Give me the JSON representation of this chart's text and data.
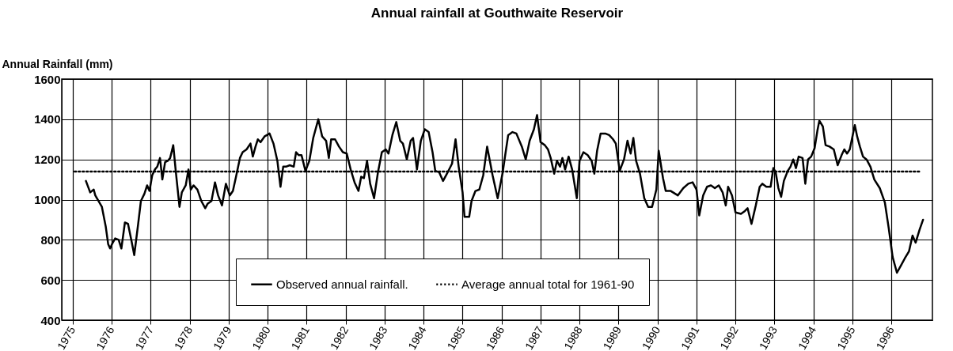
{
  "chart_data": {
    "type": "line",
    "title": "Annual rainfall at Gouthwaite Reservoir",
    "ylabel": "Annual Rainfall (mm)",
    "xlim": [
      1974.72,
      1997.05
    ],
    "xticks": [
      1975,
      1976,
      1977,
      1978,
      1979,
      1980,
      1981,
      1982,
      1983,
      1984,
      1985,
      1986,
      1987,
      1988,
      1989,
      1990,
      1991,
      1992,
      1993,
      1994,
      1995,
      1996
    ],
    "ylim": [
      400,
      1600
    ],
    "yticks": [
      400,
      600,
      800,
      1000,
      1200,
      1400,
      1600
    ],
    "grid": true,
    "legend": "bottom",
    "series": [
      {
        "name": "Observed annual rainfall.",
        "color": "#000000",
        "line_style": "solid",
        "x": [
          1975.34,
          1975.45,
          1975.54,
          1975.58,
          1975.75,
          1975.85,
          1975.91,
          1975.96,
          1976.01,
          1976.09,
          1976.18,
          1976.25,
          1976.34,
          1976.42,
          1976.51,
          1976.58,
          1976.68,
          1976.75,
          1976.84,
          1976.91,
          1976.97,
          1977.04,
          1977.11,
          1977.17,
          1977.24,
          1977.3,
          1977.37,
          1977.44,
          1977.5,
          1977.58,
          1977.64,
          1977.74,
          1977.8,
          1977.9,
          1977.97,
          1978.03,
          1978.1,
          1978.2,
          1978.3,
          1978.4,
          1978.46,
          1978.56,
          1978.65,
          1978.73,
          1978.83,
          1978.93,
          1979.03,
          1979.11,
          1979.19,
          1979.29,
          1979.36,
          1979.46,
          1979.56,
          1979.62,
          1979.69,
          1979.75,
          1979.82,
          1979.92,
          1980.05,
          1980.15,
          1980.25,
          1980.33,
          1980.4,
          1980.47,
          1980.57,
          1980.67,
          1980.73,
          1980.8,
          1980.87,
          1980.97,
          1981.07,
          1981.17,
          1981.3,
          1981.4,
          1981.5,
          1981.57,
          1981.63,
          1981.73,
          1981.83,
          1981.93,
          1982.03,
          1982.13,
          1982.23,
          1982.33,
          1982.4,
          1982.47,
          1982.55,
          1982.63,
          1982.73,
          1982.83,
          1982.93,
          1983.03,
          1983.1,
          1983.2,
          1983.3,
          1983.4,
          1983.47,
          1983.57,
          1983.67,
          1983.73,
          1983.83,
          1983.93,
          1984.03,
          1984.13,
          1984.23,
          1984.3,
          1984.4,
          1984.5,
          1984.6,
          1984.73,
          1984.82,
          1984.9,
          1985,
          1985.05,
          1985.17,
          1985.23,
          1985.33,
          1985.43,
          1985.53,
          1985.63,
          1985.77,
          1985.9,
          1986.03,
          1986.1,
          1986.17,
          1986.28,
          1986.38,
          1986.52,
          1986.62,
          1986.72,
          1986.83,
          1986.91,
          1987,
          1987.11,
          1987.19,
          1987.26,
          1987.35,
          1987.42,
          1987.5,
          1987.56,
          1987.63,
          1987.72,
          1987.81,
          1987.93,
          1988,
          1988.1,
          1988.21,
          1988.31,
          1988.38,
          1988.45,
          1988.54,
          1988.66,
          1988.76,
          1988.86,
          1988.93,
          1989.03,
          1989.14,
          1989.23,
          1989.31,
          1989.38,
          1989.45,
          1989.55,
          1989.66,
          1989.76,
          1989.86,
          1989.97,
          1990.03,
          1990.14,
          1990.21,
          1990.34,
          1990.52,
          1990.66,
          1990.79,
          1990.9,
          1991,
          1991.07,
          1991.17,
          1991.27,
          1991.37,
          1991.47,
          1991.57,
          1991.67,
          1991.75,
          1991.81,
          1991.91,
          1992,
          1992.14,
          1992.24,
          1992.31,
          1992.41,
          1992.52,
          1992.62,
          1992.69,
          1992.79,
          1992.9,
          1992.97,
          1993.03,
          1993.1,
          1993.17,
          1993.24,
          1993.34,
          1993.41,
          1993.48,
          1993.55,
          1993.62,
          1993.72,
          1993.79,
          1993.86,
          1993.94,
          1994.03,
          1994.1,
          1994.15,
          1994.24,
          1994.31,
          1994.41,
          1994.52,
          1994.62,
          1994.72,
          1994.79,
          1994.86,
          1994.93,
          1995.06,
          1995.12,
          1995.19,
          1995.27,
          1995.36,
          1995.46,
          1995.56,
          1995.7,
          1995.83,
          1995.93,
          1996.03,
          1996.14,
          1996.24,
          1996.34,
          1996.45,
          1996.54,
          1996.62,
          1996.72,
          1996.81
        ],
        "values": [
          1093,
          1036,
          1050,
          1021,
          964,
          864,
          779,
          757,
          779,
          807,
          800,
          757,
          886,
          879,
          793,
          724,
          879,
          993,
          1029,
          1071,
          1043,
          1121,
          1150,
          1164,
          1207,
          1100,
          1186,
          1193,
          1207,
          1271,
          1150,
          964,
          1036,
          1071,
          1150,
          1050,
          1071,
          1050,
          993,
          957,
          979,
          993,
          1086,
          1021,
          971,
          1079,
          1021,
          1043,
          1114,
          1207,
          1236,
          1250,
          1279,
          1214,
          1264,
          1300,
          1286,
          1314,
          1329,
          1279,
          1193,
          1064,
          1164,
          1164,
          1171,
          1164,
          1236,
          1221,
          1221,
          1143,
          1193,
          1307,
          1400,
          1314,
          1293,
          1207,
          1300,
          1300,
          1264,
          1236,
          1229,
          1150,
          1086,
          1043,
          1114,
          1107,
          1193,
          1079,
          1007,
          1136,
          1236,
          1250,
          1229,
          1321,
          1386,
          1293,
          1279,
          1200,
          1293,
          1307,
          1150,
          1293,
          1350,
          1336,
          1236,
          1143,
          1136,
          1093,
          1129,
          1179,
          1300,
          1164,
          1036,
          914,
          914,
          993,
          1043,
          1050,
          1121,
          1264,
          1121,
          1007,
          1136,
          1230,
          1321,
          1336,
          1329,
          1264,
          1200,
          1293,
          1350,
          1421,
          1286,
          1271,
          1250,
          1207,
          1129,
          1193,
          1164,
          1207,
          1150,
          1214,
          1150,
          1007,
          1193,
          1236,
          1221,
          1193,
          1129,
          1243,
          1329,
          1329,
          1321,
          1300,
          1279,
          1143,
          1200,
          1293,
          1229,
          1307,
          1193,
          1129,
          1007,
          964,
          964,
          1050,
          1243,
          1107,
          1043,
          1043,
          1021,
          1057,
          1079,
          1086,
          1050,
          921,
          1021,
          1064,
          1071,
          1057,
          1071,
          1036,
          971,
          1064,
          1021,
          936,
          929,
          943,
          957,
          879,
          971,
          1064,
          1079,
          1064,
          1064,
          1157,
          1136,
          1057,
          1014,
          1093,
          1143,
          1164,
          1200,
          1157,
          1214,
          1207,
          1079,
          1200,
          1214,
          1257,
          1343,
          1393,
          1364,
          1271,
          1264,
          1250,
          1171,
          1221,
          1250,
          1229,
          1250,
          1371,
          1314,
          1264,
          1214,
          1200,
          1164,
          1100,
          1057,
          986,
          857,
          714,
          636,
          671,
          707,
          743,
          821,
          786,
          850,
          900
        ]
      },
      {
        "name": "Average annual total for 1961-90",
        "color": "#000000",
        "line_style": "dotted",
        "x": [
          1975.05,
          1996.75
        ],
        "values": [
          1140,
          1140
        ]
      }
    ]
  }
}
